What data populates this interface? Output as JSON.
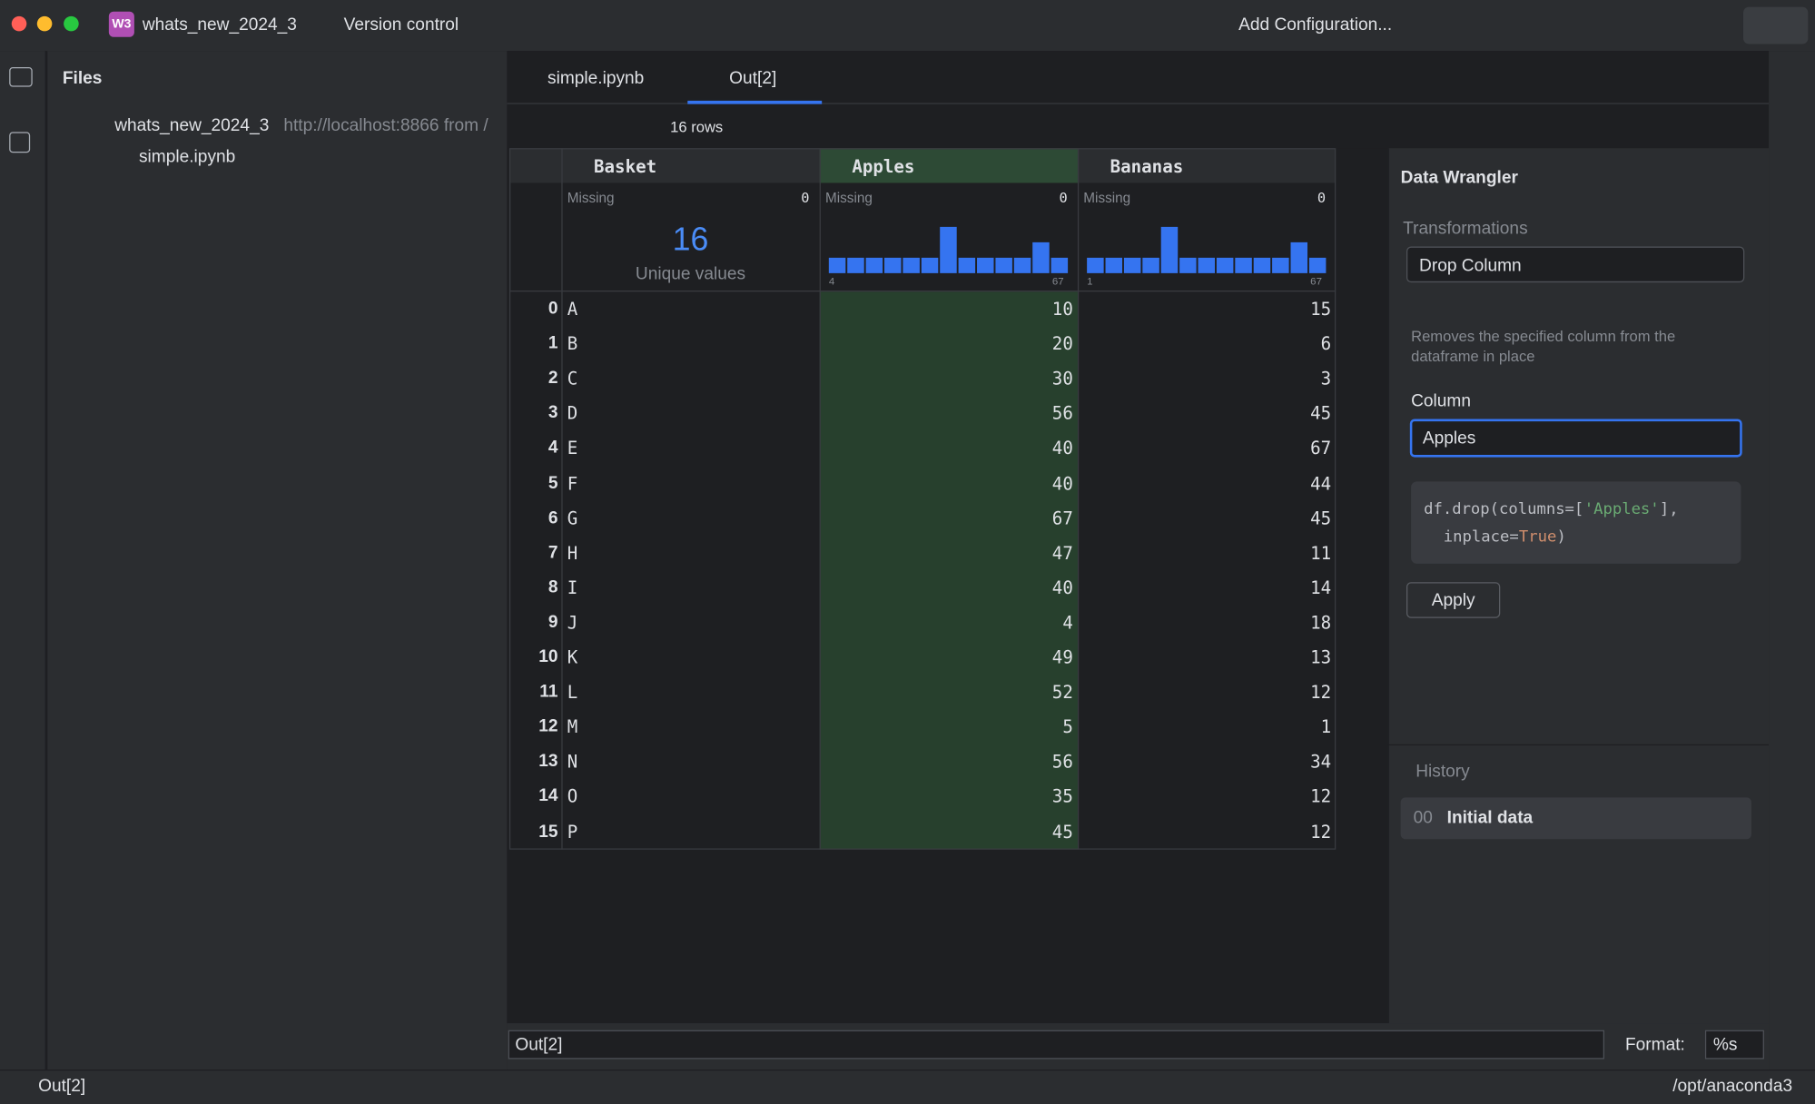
{
  "titlebar": {
    "badge": "W3",
    "project": "whats_new_2024_3",
    "vcs": "Version control",
    "run_config": "Add Configuration..."
  },
  "sidebar": {
    "title": "Files",
    "tree": [
      {
        "label": "whats_new_2024_3",
        "detail": "http://localhost:8866 from /"
      },
      {
        "label": "simple.ipynb"
      }
    ]
  },
  "tabs": [
    "simple.ipynb",
    "Out[2]"
  ],
  "toolbar": {
    "rows": "16 rows"
  },
  "table": {
    "columns": [
      {
        "name": "Basket",
        "missing_label": "Missing",
        "missing": 0,
        "unique": 16,
        "unique_label": "Unique values"
      },
      {
        "name": "Apples",
        "missing_label": "Missing",
        "missing": 0,
        "histogram": [
          1,
          1,
          1,
          1,
          1,
          1,
          3,
          1,
          1,
          1,
          1,
          2,
          1
        ],
        "range": [
          4,
          67
        ]
      },
      {
        "name": "Bananas",
        "missing_label": "Missing",
        "missing": 0,
        "histogram": [
          1,
          1,
          1,
          1,
          3,
          1,
          1,
          1,
          1,
          1,
          1,
          2,
          1
        ],
        "range": [
          1,
          67
        ]
      }
    ],
    "rows": [
      [
        0,
        "A",
        10,
        15
      ],
      [
        1,
        "B",
        20,
        6
      ],
      [
        2,
        "C",
        30,
        3
      ],
      [
        3,
        "D",
        56,
        45
      ],
      [
        4,
        "E",
        40,
        67
      ],
      [
        5,
        "F",
        40,
        44
      ],
      [
        6,
        "G",
        67,
        45
      ],
      [
        7,
        "H",
        47,
        11
      ],
      [
        8,
        "I",
        40,
        14
      ],
      [
        9,
        "J",
        4,
        18
      ],
      [
        10,
        "K",
        49,
        13
      ],
      [
        11,
        "L",
        52,
        12
      ],
      [
        12,
        "M",
        5,
        1
      ],
      [
        13,
        "N",
        56,
        34
      ],
      [
        14,
        "O",
        35,
        12
      ],
      [
        15,
        "P",
        45,
        12
      ]
    ]
  },
  "wrangler": {
    "title": "Data Wrangler",
    "section": "Transformations",
    "transformation": "Drop Column",
    "description": "Removes the specified column from the dataframe in place",
    "column_label": "Column",
    "column": "Apples",
    "code": [
      [
        "df.drop(columns=[",
        "'Apples'",
        "],"
      ],
      [
        "inplace=",
        "True",
        ")"
      ]
    ],
    "apply": "Apply",
    "history": "History",
    "history_items": [
      {
        "index": "00",
        "label": "Initial data"
      }
    ]
  },
  "footer": {
    "cell": "Out[2]",
    "format_label": "Format:",
    "format": "%s",
    "status": "Out[2]",
    "interpreter": "/opt/anaconda3"
  }
}
